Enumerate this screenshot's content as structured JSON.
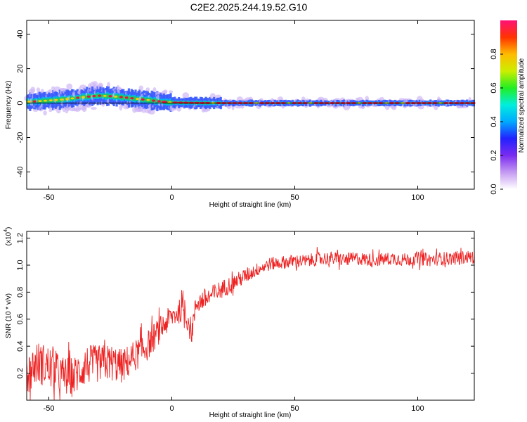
{
  "title": "C2E2.2025.244.19.52.G10",
  "colors": {
    "background": "#ffffff",
    "frame": "#000000",
    "snr_line": "#ee2222",
    "frequency_line": "#000000",
    "spectral_core": "#e8123a",
    "spectral_mid": "#22cc55",
    "spectral_low": "#3355ff",
    "spectral_faint": "#cfb8f5"
  },
  "chart_data": [
    {
      "type": "heatmap",
      "title": "C2E2.2025.244.19.52.G10",
      "xlabel": "Height of straight line (km)",
      "ylabel": "Frequency (Hz)",
      "xlim": [
        -59,
        123
      ],
      "ylim": [
        -50,
        48
      ],
      "x_ticks": [
        "-50",
        "0",
        "50",
        "100"
      ],
      "y_ticks": [
        "40",
        "20",
        "0",
        "-20",
        "-40"
      ],
      "colorbar": {
        "label": "Normalized spectral amplitude",
        "range": [
          0.0,
          1.0
        ],
        "ticks": [
          "0.0",
          "0.2",
          "0.4",
          "0.6",
          "0.8"
        ],
        "colors": [
          "#ffffff",
          "#c59af2",
          "#7a2cf0",
          "#2222ff",
          "#00aaff",
          "#00eedd",
          "#22ee22",
          "#ccee00",
          "#ffbb00",
          "#ff3300",
          "#ff1177"
        ]
      },
      "frequency_ridge": {
        "x": [
          -58,
          -50,
          -45,
          -40,
          -35,
          -30,
          -25,
          -20,
          -15,
          -10,
          -5,
          0,
          10,
          20,
          40,
          60,
          80,
          100,
          123
        ],
        "y": [
          0.8,
          1.5,
          2.0,
          2.8,
          3.6,
          4.3,
          4.0,
          3.4,
          2.6,
          1.8,
          1.0,
          0.3,
          0.1,
          0.0,
          0.0,
          0.0,
          0.0,
          0.0,
          0.0
        ]
      },
      "reference_line_y": 0
    },
    {
      "type": "line",
      "xlabel": "Height of straight line (km)",
      "ylabel": "SNR (10 * v/v)",
      "y_multiplier": "(x10",
      "y_multiplier_exp": "4",
      "y_multiplier_close": ")",
      "xlim": [
        -59,
        123
      ],
      "ylim": [
        0.0,
        1.25
      ],
      "x_ticks": [
        "-50",
        "0",
        "50",
        "100"
      ],
      "y_ticks": [
        "0.2",
        "0.4",
        "0.6",
        "0.8",
        "1.0",
        "1.2"
      ],
      "series": [
        {
          "x": [
            -58,
            -55,
            -50,
            -45,
            -40,
            -35,
            -30,
            -25,
            -20,
            -15,
            -10,
            -5,
            0,
            5,
            8,
            10,
            15,
            20,
            25,
            30,
            35,
            40,
            45,
            50,
            55,
            60,
            65,
            70,
            75,
            80,
            85,
            90,
            95,
            100,
            105,
            110,
            115,
            120,
            123
          ],
          "y": [
            0.2,
            0.28,
            0.25,
            0.18,
            0.17,
            0.26,
            0.27,
            0.28,
            0.25,
            0.33,
            0.4,
            0.52,
            0.62,
            0.68,
            0.5,
            0.72,
            0.76,
            0.82,
            0.87,
            0.92,
            0.97,
            1.01,
            1.02,
            1.03,
            1.03,
            1.05,
            1.05,
            1.04,
            1.05,
            1.04,
            1.04,
            1.05,
            1.04,
            1.05,
            1.04,
            1.05,
            1.05,
            1.06,
            1.06
          ],
          "noise_amplitude": [
            0.16,
            0.16,
            0.16,
            0.15,
            0.15,
            0.15,
            0.14,
            0.14,
            0.13,
            0.12,
            0.11,
            0.1,
            0.09,
            0.09,
            0.1,
            0.08,
            0.08,
            0.07,
            0.06,
            0.06,
            0.05,
            0.05,
            0.05,
            0.05,
            0.05,
            0.05,
            0.05,
            0.05,
            0.05,
            0.05,
            0.05,
            0.05,
            0.05,
            0.05,
            0.05,
            0.05,
            0.05,
            0.05,
            0.05
          ]
        }
      ]
    }
  ]
}
